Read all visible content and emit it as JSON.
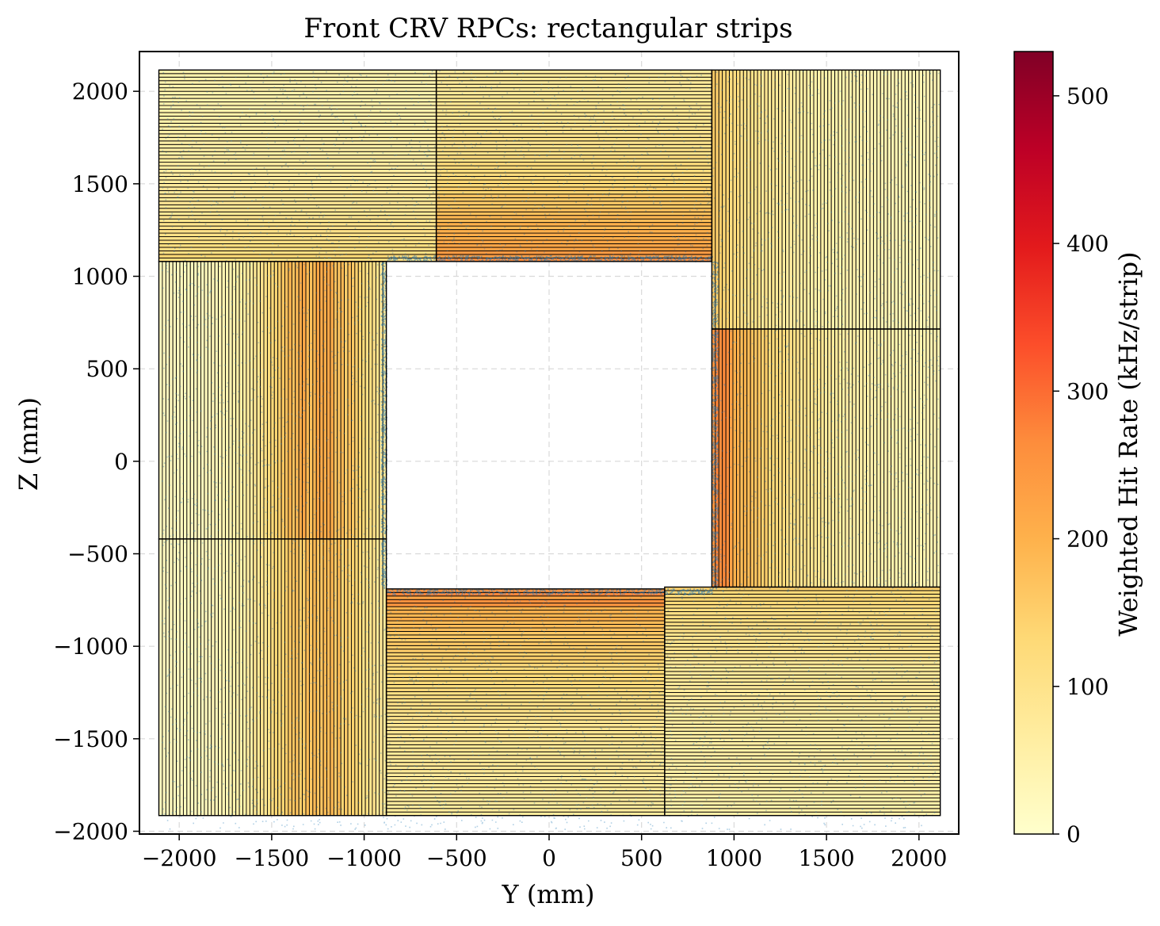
{
  "chart_data": {
    "type": "heatmap",
    "title": "Front CRV RPCs: rectangular strips",
    "xlabel": "Y (mm)",
    "ylabel": "Z (mm)",
    "xlim": [
      -2215,
      2215
    ],
    "ylim": [
      -2015,
      2215
    ],
    "xticks": [
      -2000,
      -1500,
      -1000,
      -500,
      0,
      500,
      1000,
      1500,
      2000
    ],
    "yticks": [
      -2000,
      -1500,
      -1000,
      -500,
      0,
      500,
      1000,
      1500,
      2000
    ],
    "xtick_labels": [
      "−2000",
      "−1500",
      "−1000",
      "−500",
      "0",
      "500",
      "1000",
      "1500",
      "2000"
    ],
    "ytick_labels": [
      "−2000",
      "−1500",
      "−1000",
      "−500",
      "0",
      "500",
      "1000",
      "1500",
      "2000"
    ],
    "grid": true,
    "colorbar": {
      "label": "Weighted Hit Rate (kHz/strip)",
      "min": 0,
      "max": 530,
      "ticks": [
        0,
        100,
        200,
        300,
        400,
        500
      ],
      "tick_labels": [
        "0",
        "100",
        "200",
        "300",
        "400",
        "500"
      ],
      "colormap": [
        "#ffffcc",
        "#ffeda0",
        "#fed976",
        "#feb24c",
        "#fd8d3c",
        "#fc4e2a",
        "#e31a1c",
        "#bd0026",
        "#800026"
      ]
    },
    "hit_marker_color": "#1f77b4",
    "rpc_modules": [
      {
        "name": "top-left",
        "y": [
          -2110,
          -610
        ],
        "z": [
          1080,
          2115
        ],
        "strips": "horizontal",
        "rate_range": [
          40,
          130
        ]
      },
      {
        "name": "top-center",
        "y": [
          -610,
          880
        ],
        "z": [
          1080,
          2115
        ],
        "strips": "horizontal",
        "rate_range": [
          60,
          270
        ]
      },
      {
        "name": "top-right-upper",
        "y": [
          880,
          2115
        ],
        "z": [
          715,
          2115
        ],
        "strips": "vertical",
        "rate_range": [
          30,
          150
        ]
      },
      {
        "name": "right-lower",
        "y": [
          880,
          2115
        ],
        "z": [
          -680,
          715
        ],
        "strips": "vertical",
        "rate_range": [
          30,
          280
        ]
      },
      {
        "name": "left-upper",
        "y": [
          -2110,
          -880
        ],
        "z": [
          -420,
          1080
        ],
        "strips": "vertical",
        "rate_range": [
          20,
          200
        ]
      },
      {
        "name": "left-lower",
        "y": [
          -2110,
          -880
        ],
        "z": [
          -1915,
          -420
        ],
        "strips": "vertical",
        "rate_range": [
          20,
          180
        ]
      },
      {
        "name": "bottom-center",
        "y": [
          -880,
          625
        ],
        "z": [
          -1915,
          -690
        ],
        "strips": "horizontal",
        "rate_range": [
          60,
          270
        ]
      },
      {
        "name": "bottom-right",
        "y": [
          625,
          2115
        ],
        "z": [
          -1915,
          -680
        ],
        "strips": "horizontal",
        "rate_range": [
          50,
          140
        ]
      }
    ],
    "opening": {
      "y": [
        -880,
        880
      ],
      "z": [
        -690,
        1080
      ]
    }
  }
}
